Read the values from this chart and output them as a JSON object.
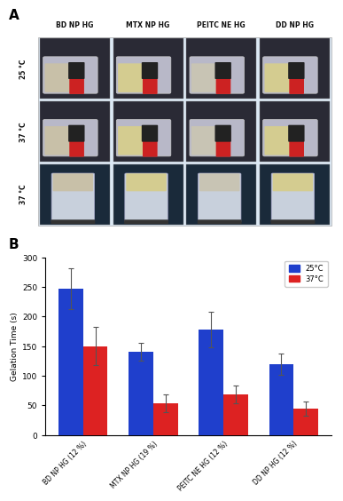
{
  "panel_A_label": "A",
  "panel_B_label": "B",
  "col_headers": [
    "BD NP HG",
    "MTX NP HG",
    "PEITC NE HG",
    "DD NP HG"
  ],
  "row_headers": [
    "25 °C",
    "37 °C",
    "37 °C"
  ],
  "categories": [
    "BD NP HG (12 %)",
    "MTX NP HG (19 %)",
    "PEITC NE HG (12 %)",
    "DD NP HG (12 %)"
  ],
  "blue_values": [
    247,
    140,
    178,
    120
  ],
  "red_values": [
    150,
    53,
    68,
    45
  ],
  "blue_errors": [
    35,
    15,
    30,
    18
  ],
  "red_errors": [
    32,
    15,
    15,
    12
  ],
  "blue_color": "#1f3fcc",
  "red_color": "#dd2222",
  "ylabel": "Gelation Time (s)",
  "ylim": [
    0,
    300
  ],
  "yticks": [
    0,
    50,
    100,
    150,
    200,
    250,
    300
  ],
  "legend_25": "25°C",
  "legend_37": "37°C",
  "grid_bg": "#dce9f5",
  "cell_border": "#aaaaaa",
  "photo_colors_row1": [
    "#c8c0a8",
    "#d4cc90",
    "#c8c4b4",
    "#d4cc90"
  ],
  "photo_colors_row2": [
    "#c8c0a8",
    "#d4cc90",
    "#c8c4b4",
    "#d4cc90"
  ],
  "photo_colors_row3": [
    "#c8c0a8",
    "#d4cc90",
    "#c8c4b4",
    "#d4cc90"
  ],
  "bar_width": 0.35,
  "figure_bg": "#ffffff"
}
